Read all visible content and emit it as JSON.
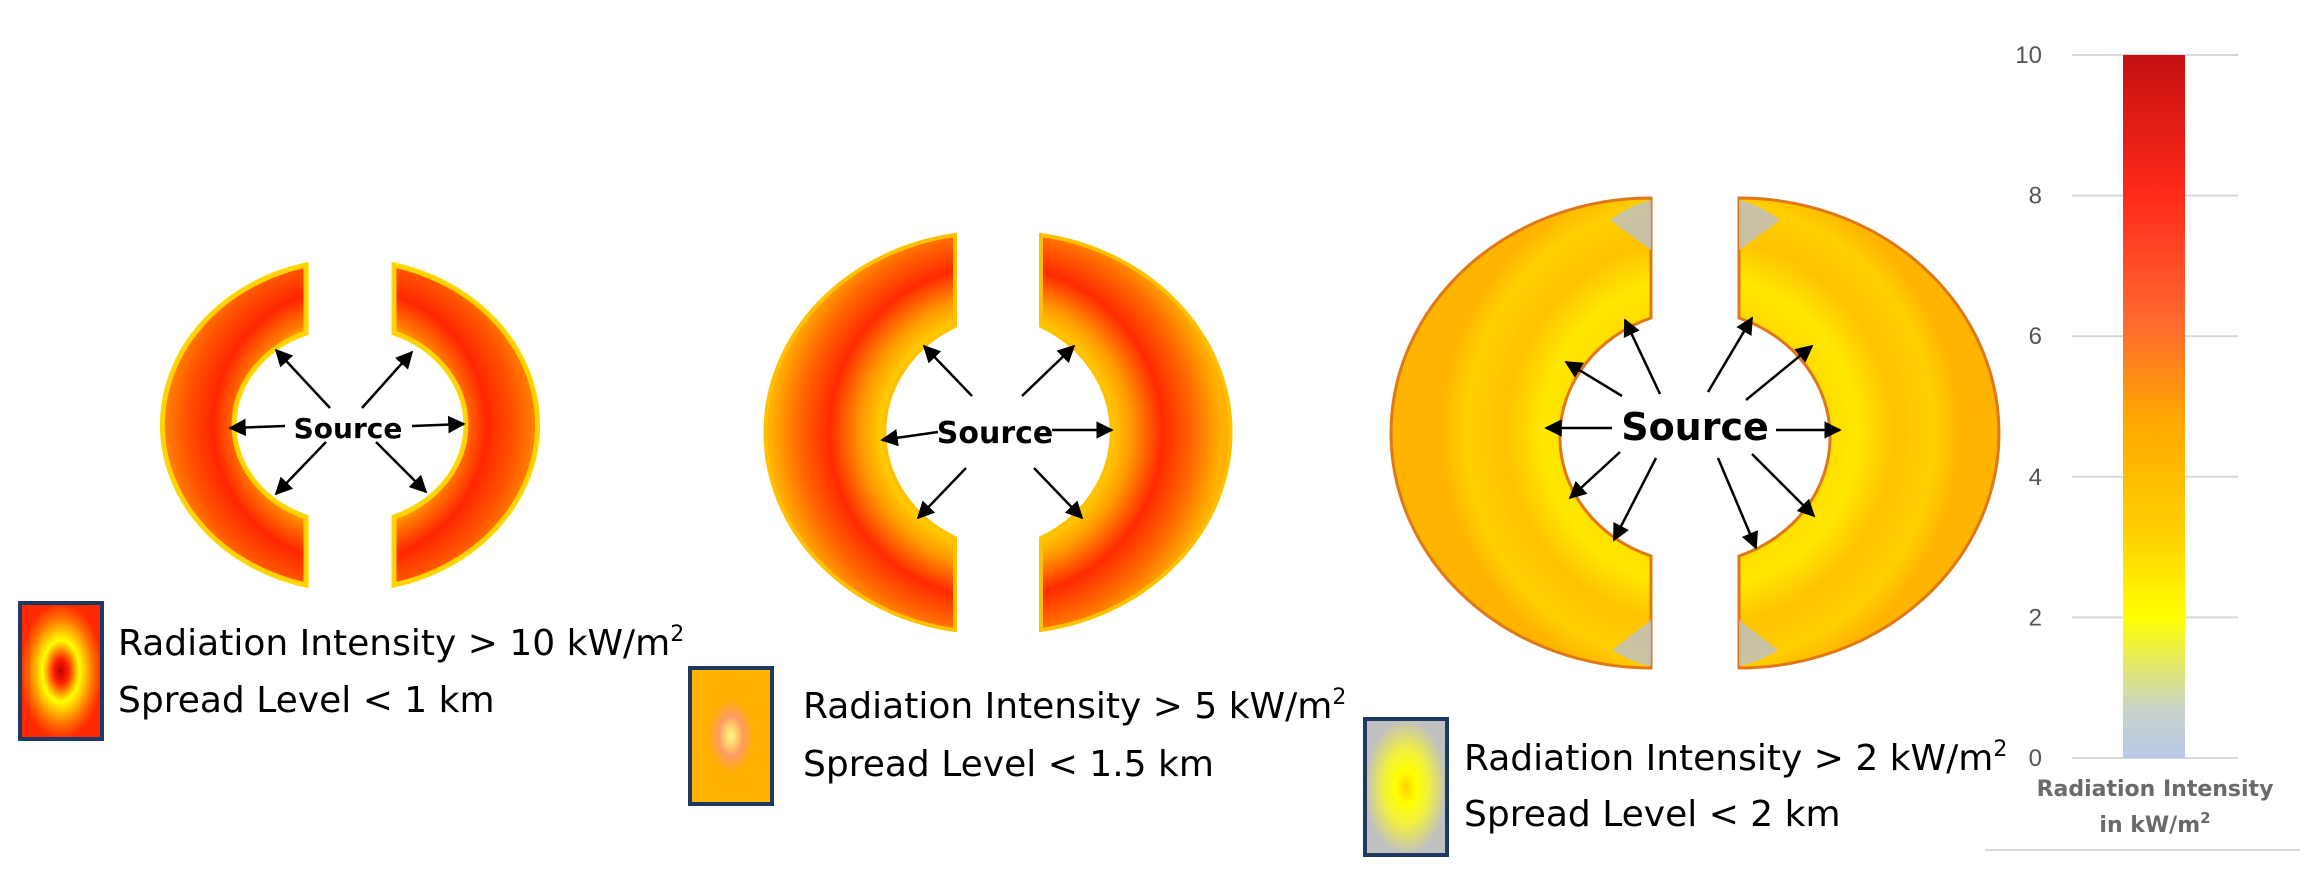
{
  "zones": [
    {
      "source_label": "Source",
      "legend": {
        "label": "Radiation Intensity > 10 kW/m",
        "superscript": "2",
        "spread": "Spread Level < 1 km"
      }
    },
    {
      "source_label": "Source",
      "legend": {
        "label": "Radiation Intensity > 5 kW/m",
        "superscript": "2",
        "spread": "Spread Level < 1.5 km"
      }
    },
    {
      "source_label": "Source",
      "legend": {
        "label": "Radiation Intensity > 2 kW/m",
        "superscript": "2",
        "spread": "Spread Level < 2 km"
      }
    }
  ],
  "scale": {
    "ticks": [
      "0",
      "2",
      "4",
      "6",
      "8",
      "10"
    ],
    "caption_line1": "Radiation Intensity",
    "caption_line2": "in kW/m",
    "caption_sup": "2",
    "min": 0,
    "max": 10
  },
  "colors": {
    "red": "#ff1a00",
    "orange": "#ff8c00",
    "yellow": "#ffff00",
    "gold": "#ffc400",
    "gray": "#c0c0c0",
    "legend_border": "#1f3864"
  }
}
